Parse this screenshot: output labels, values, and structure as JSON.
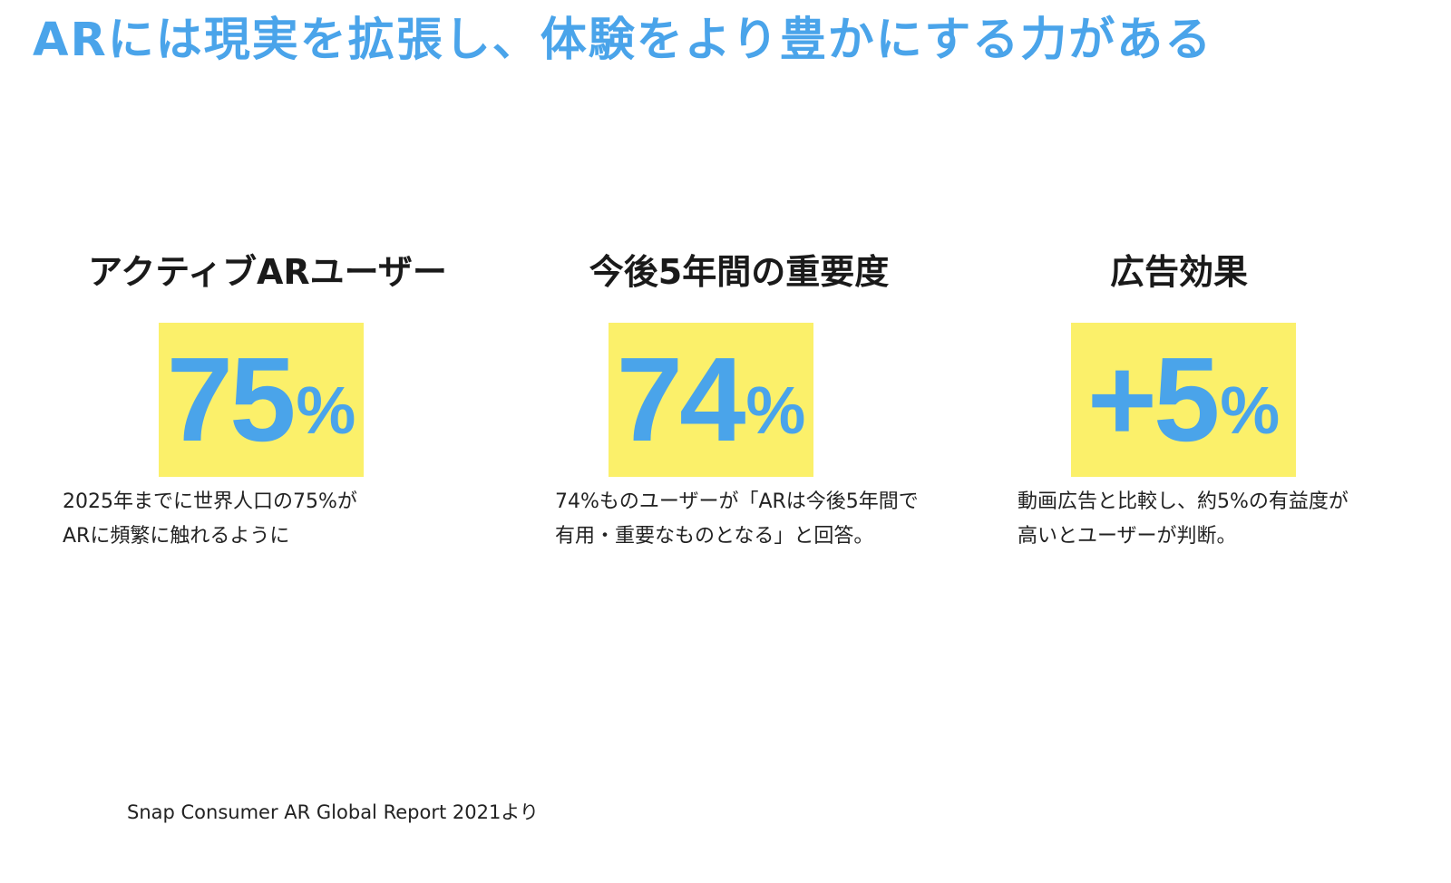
{
  "headline": "ARには現実を拡張し、体験をより豊かにする力がある",
  "stats": [
    {
      "title": "アクティブARユーザー",
      "value": "75",
      "unit": "%",
      "desc_line1": "2025年までに世界人口の75%が",
      "desc_line2": "ARに頻繁に触れるように"
    },
    {
      "title": "今後5年間の重要度",
      "value": "74",
      "unit": "%",
      "desc_line1": "74%ものユーザーが「ARは今後5年間で",
      "desc_line2": "有用・重要なものとなる」と回答。"
    },
    {
      "title": "広告効果",
      "value": "+5",
      "unit": "%",
      "desc_line1": "動画広告と比較し、約5%の有益度が",
      "desc_line2": "高いとユーザーが判断。"
    }
  ],
  "source": "Snap Consumer AR Global Report 2021より",
  "colors": {
    "accent_blue": "#4aa4ea",
    "highlight_yellow": "#fbf06a",
    "text_dark": "#1a1a1a"
  }
}
